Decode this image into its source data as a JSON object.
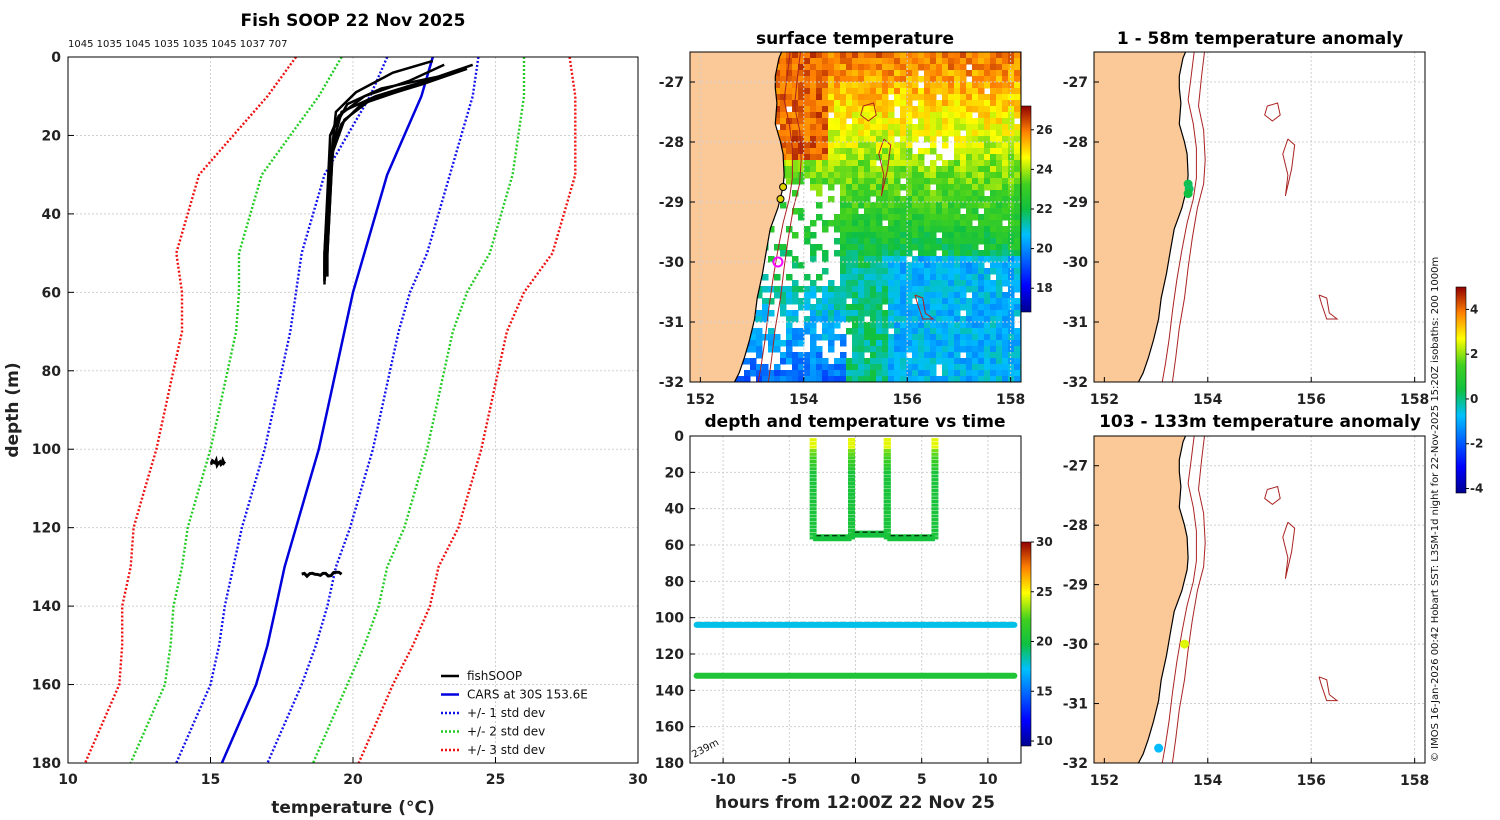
{
  "colors": {
    "land": "#fbc898",
    "fish": "#000000",
    "cars": "#0000dd",
    "sd1": "#1111ee",
    "sd2": "#22cc22",
    "sd3": "#ee1111",
    "isobath": "#aa2222",
    "grid": "#d0d0d0"
  },
  "credit": "© IMOS 16-Jan-2026 00:42 Hobart SST: L3SM-1d night for 22-Nov-2025 15:20Z isobaths: 200  1000m",
  "chart_data": [
    {
      "id": "profile",
      "type": "line",
      "title": "Fish SOOP 22 Nov 2025",
      "subtitle": "1045 1035 1045 1035 1035 1045 1037 707",
      "xlabel": "temperature (°C)",
      "ylabel": "depth (m)",
      "xlim": [
        10,
        30
      ],
      "ylim": [
        180,
        0
      ],
      "xticks": [
        "10",
        "15",
        "20",
        "25",
        "30"
      ],
      "yticks": [
        "0",
        "20",
        "40",
        "60",
        "80",
        "100",
        "120",
        "140",
        "160",
        "180"
      ],
      "legend": [
        "fishSOOP",
        "CARS at 30S 153.6E",
        "+/- 1 std dev",
        "+/- 2 std dev",
        "+/- 3 std dev"
      ],
      "legend_position": "bottom-right",
      "depth": [
        0,
        10,
        20,
        30,
        40,
        50,
        60,
        70,
        80,
        90,
        100,
        110,
        120,
        130,
        140,
        150,
        160,
        170,
        180
      ],
      "cars_mean": [
        22.8,
        22.4,
        21.8,
        21.2,
        20.8,
        20.4,
        20.0,
        19.7,
        19.4,
        19.1,
        18.8,
        18.4,
        18.0,
        17.6,
        17.3,
        17.0,
        16.6,
        16.0,
        15.4
      ],
      "cars_std": [
        1.6,
        1.8,
        2.0,
        2.2,
        2.2,
        2.2,
        2.0,
        1.9,
        1.9,
        1.9,
        1.9,
        1.9,
        1.9,
        1.8,
        1.8,
        1.7,
        1.6,
        1.6,
        1.6
      ],
      "fish_profiles": [
        {
          "t": [
            24.2,
            23.0,
            21.0,
            19.8,
            19.2,
            19.1,
            19.0,
            19.0
          ],
          "d": [
            2,
            5,
            8,
            12,
            20,
            35,
            50,
            57
          ]
        },
        {
          "t": [
            23.8,
            22.6,
            20.8,
            19.6,
            19.3,
            19.2,
            19.1,
            19.1
          ],
          "d": [
            3,
            6,
            10,
            14,
            22,
            36,
            50,
            56
          ]
        },
        {
          "t": [
            23.2,
            22.0,
            20.4,
            19.5,
            19.2,
            19.2,
            19.1,
            19.0
          ],
          "d": [
            2,
            6,
            10,
            15,
            20,
            34,
            48,
            55
          ]
        },
        {
          "t": [
            22.8,
            21.4,
            20.1,
            19.4,
            19.3,
            19.2,
            19.1,
            19.0
          ],
          "d": [
            1,
            4,
            9,
            14,
            21,
            36,
            50,
            57
          ]
        },
        {
          "t": [
            24.0,
            22.4,
            20.6,
            19.7,
            19.3,
            19.1,
            19.0,
            19.0
          ],
          "d": [
            3,
            7,
            11,
            16,
            24,
            38,
            52,
            58
          ]
        },
        {
          "t": [
            23.5,
            21.9,
            20.3,
            19.6,
            19.2,
            19.1,
            19.0,
            19.0
          ],
          "d": [
            4,
            8,
            12,
            17,
            25,
            38,
            50,
            56
          ]
        }
      ],
      "fish_clusters": [
        {
          "t": [
            15.0,
            15.5
          ],
          "d": 103.5
        },
        {
          "t": [
            18.2,
            19.6
          ],
          "d": 131.8
        }
      ]
    },
    {
      "id": "sst",
      "type": "heatmap",
      "title": "surface temperature",
      "xlim": [
        151.8,
        158.2
      ],
      "ylim": [
        -32,
        -26.5
      ],
      "xticks": [
        "152",
        "154",
        "156",
        "158"
      ],
      "yticks": [
        "-27",
        "-28",
        "-29",
        "-30",
        "-31",
        "-32"
      ],
      "colorbar": {
        "range": [
          16.8,
          27.2
        ],
        "ticks": [
          "18",
          "20",
          "22",
          "24",
          "26"
        ]
      },
      "markers": [
        {
          "lon": 153.6,
          "lat": -28.75,
          "kind": "dot"
        },
        {
          "lon": 153.55,
          "lat": -28.95,
          "kind": "dot"
        },
        {
          "lon": 153.5,
          "lat": -30.0,
          "kind": "ring"
        }
      ]
    },
    {
      "id": "time",
      "type": "scatter",
      "title": "depth and temperature vs time",
      "xlabel": "hours from 12:00Z 22 Nov 25",
      "xlim": [
        -12.5,
        12.5
      ],
      "ylim": [
        180,
        0
      ],
      "xticks": [
        "-10",
        "-5",
        "0",
        "5",
        "10"
      ],
      "yticks": [
        "0",
        "20",
        "40",
        "60",
        "80",
        "100",
        "120",
        "140",
        "160",
        "180"
      ],
      "bottom_depth_label": "239m",
      "colorbar": {
        "range": [
          9.5,
          30
        ],
        "ticks": [
          "10",
          "15",
          "20",
          "25",
          "30"
        ]
      },
      "casts": [
        {
          "start": -3.2,
          "end": -0.3,
          "bottom": 56
        },
        {
          "start": -0.3,
          "end": 2.4,
          "bottom": 54
        },
        {
          "start": 2.4,
          "end": 6.0,
          "bottom": 56
        }
      ],
      "constant_tracks": [
        {
          "depth": 104,
          "temp": 17.5
        },
        {
          "depth": 132,
          "temp": 20.5
        }
      ]
    },
    {
      "id": "anom1",
      "type": "scatter",
      "title": "1 - 58m temperature anomaly",
      "xlim": [
        151.8,
        158.2
      ],
      "ylim": [
        -32,
        -26.5
      ],
      "xticks": [
        "152",
        "154",
        "156",
        "158"
      ],
      "yticks": [
        "-27",
        "-28",
        "-29",
        "-30",
        "-31",
        "-32"
      ],
      "points": [
        {
          "lon": 153.62,
          "lat": -28.7,
          "anom": 0.3
        },
        {
          "lon": 153.64,
          "lat": -28.78,
          "anom": 0.2
        },
        {
          "lon": 153.62,
          "lat": -28.86,
          "anom": 0.4
        }
      ]
    },
    {
      "id": "anom2",
      "type": "scatter",
      "title": "103 - 133m temperature anomaly",
      "xlim": [
        151.8,
        158.2
      ],
      "ylim": [
        -32,
        -26.5
      ],
      "xticks": [
        "152",
        "154",
        "156",
        "158"
      ],
      "yticks": [
        "-27",
        "-28",
        "-29",
        "-30",
        "-31",
        "-32"
      ],
      "points": [
        {
          "lon": 153.55,
          "lat": -30.0,
          "anom": 2.5
        },
        {
          "lon": 153.05,
          "lat": -31.75,
          "anom": -0.8
        }
      ],
      "colorbar": {
        "range": [
          -4.2,
          5
        ],
        "ticks": [
          "-4",
          "-2",
          "0",
          "2",
          "4"
        ]
      }
    }
  ]
}
